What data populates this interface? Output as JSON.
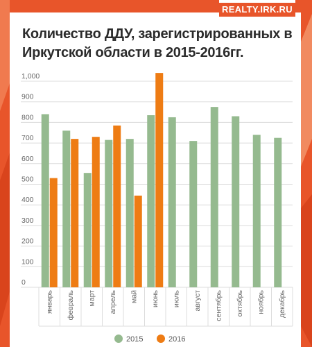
{
  "brand": {
    "label": "REALTY.IRK.RU"
  },
  "colors": {
    "accent": "#e8552a",
    "series_2015": "#95ba8f",
    "series_2016": "#ee7c14"
  },
  "chart_data": {
    "type": "bar",
    "title": "Количество ДДУ, зарегистрированных в Иркутской области в 2015-2016гг.",
    "xlabel": "",
    "ylabel": "",
    "ylim": [
      0,
      1000
    ],
    "yticks": [
      0,
      100,
      200,
      300,
      400,
      500,
      600,
      700,
      800,
      900,
      1000
    ],
    "ytick_labels": [
      "0",
      "100",
      "200",
      "300",
      "400",
      "500",
      "600",
      "700",
      "800",
      "900",
      "1,000"
    ],
    "grid": true,
    "legend_position": "bottom",
    "categories": [
      "январь",
      "февраль",
      "март",
      "апрель",
      "май",
      "июнь",
      "июль",
      "август",
      "сентябрь",
      "октябрь",
      "ноябрь",
      "декабрь"
    ],
    "series": [
      {
        "name": "2015",
        "color": "#95ba8f",
        "values": [
          840,
          760,
          555,
          715,
          720,
          835,
          825,
          710,
          875,
          830,
          740,
          725
        ]
      },
      {
        "name": "2016",
        "color": "#ee7c14",
        "values": [
          530,
          720,
          730,
          785,
          445,
          1040,
          null,
          null,
          null,
          null,
          null,
          null
        ]
      }
    ]
  }
}
